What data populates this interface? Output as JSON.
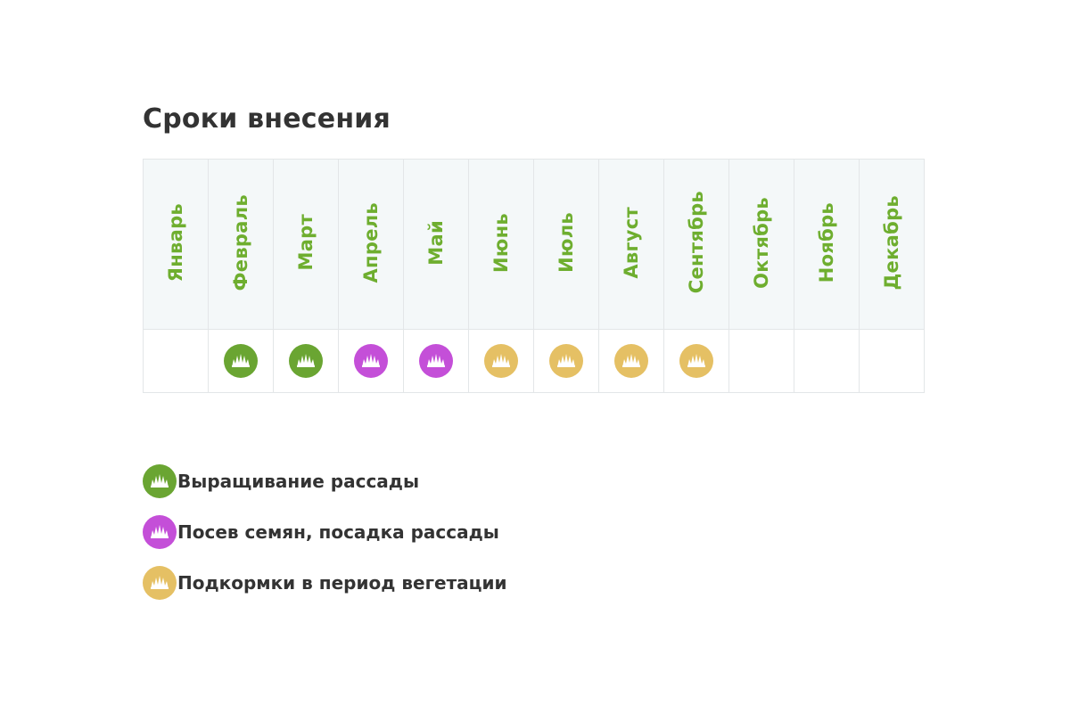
{
  "title": "Сроки внесения",
  "colors": {
    "seedling": "#6aa532",
    "sowing": "#c44fd8",
    "feeding": "#e5c064",
    "month_text": "#6eae2f"
  },
  "months": [
    {
      "label": "Январь",
      "activity": null
    },
    {
      "label": "Февраль",
      "activity": "seedling"
    },
    {
      "label": "Март",
      "activity": "seedling"
    },
    {
      "label": "Апрель",
      "activity": "sowing"
    },
    {
      "label": "Май",
      "activity": "sowing"
    },
    {
      "label": "Июнь",
      "activity": "feeding"
    },
    {
      "label": "Июль",
      "activity": "feeding"
    },
    {
      "label": "Август",
      "activity": "feeding"
    },
    {
      "label": "Сентябрь",
      "activity": "feeding"
    },
    {
      "label": "Октябрь",
      "activity": null
    },
    {
      "label": "Ноябрь",
      "activity": null
    },
    {
      "label": "Декабрь",
      "activity": null
    }
  ],
  "legend": [
    {
      "key": "seedling",
      "label": "Выращивание рассады",
      "icon": "grass-icon"
    },
    {
      "key": "sowing",
      "label": "Посев семян, посадка рассады",
      "icon": "grass-icon"
    },
    {
      "key": "feeding",
      "label": "Подкормки в период вегетации",
      "icon": "grass-icon"
    }
  ]
}
